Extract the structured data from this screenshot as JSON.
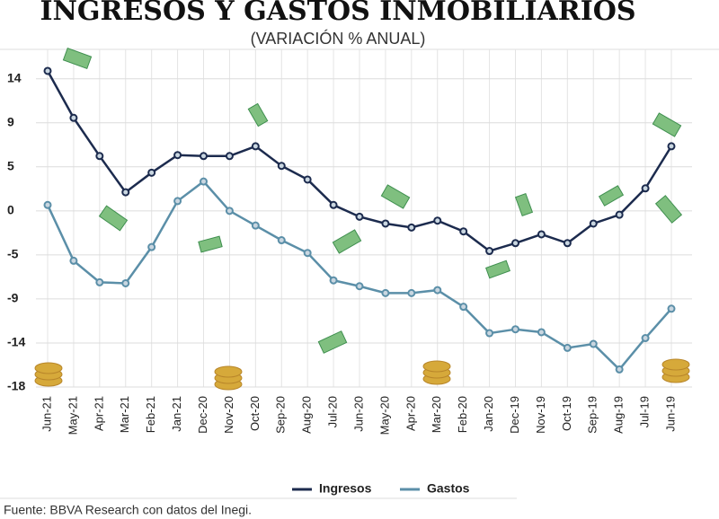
{
  "chart_data": {
    "type": "line",
    "title": "INGRESOS Y GASTOS INMOBILIARIOS",
    "subtitle": "(VARIACIÓN % ANUAL)",
    "source": "Fuente: BBVA Research con datos del Inegi.",
    "categories": [
      "Jun-21",
      "May-21",
      "Apr-21",
      "Mar-21",
      "Feb-21",
      "Jan-21",
      "Dec-20",
      "Nov-20",
      "Oct-20",
      "Sep-20",
      "Aug-20",
      "Jul-20",
      "Jun-20",
      "May-20",
      "Apr-20",
      "Mar-20",
      "Feb-20",
      "Jan-20",
      "Dec-19",
      "Nov-19",
      "Oct-19",
      "Sep-19",
      "Aug-19",
      "Jul-19",
      "Jun-19"
    ],
    "series": [
      {
        "name": "Ingresos",
        "color": "#1c2b4e",
        "values": [
          14.3,
          9.5,
          5.6,
          1.9,
          3.9,
          5.7,
          5.6,
          5.6,
          6.6,
          4.6,
          3.2,
          0.6,
          -0.6,
          -1.3,
          -1.7,
          -1.0,
          -2.1,
          -4.1,
          -3.3,
          -2.4,
          -3.3,
          -1.3,
          -0.4,
          2.3,
          6.6
        ]
      },
      {
        "name": "Gastos",
        "color": "#5b8fa8",
        "values": [
          0.6,
          -5.1,
          -7.3,
          -7.4,
          -3.7,
          1.0,
          3.0,
          0,
          -1.5,
          -3.0,
          -4.3,
          -7.1,
          -7.7,
          -8.4,
          -8.4,
          -8.1,
          -9.8,
          -12.5,
          -12.1,
          -12.4,
          -14.0,
          -13.6,
          -16.2,
          -13.0,
          -10.0
        ]
      }
    ],
    "ylim": [
      -18,
      16.5
    ],
    "yticks": [
      {
        "value": -18,
        "label": "-18"
      },
      {
        "value": -13.5,
        "label": "-14"
      },
      {
        "value": -9,
        "label": "-9"
      },
      {
        "value": -4.5,
        "label": "-5"
      },
      {
        "value": 0,
        "label": "0"
      },
      {
        "value": 4.5,
        "label": "5"
      },
      {
        "value": 9,
        "label": "9"
      },
      {
        "value": 13.5,
        "label": "14"
      }
    ],
    "grid": true
  }
}
